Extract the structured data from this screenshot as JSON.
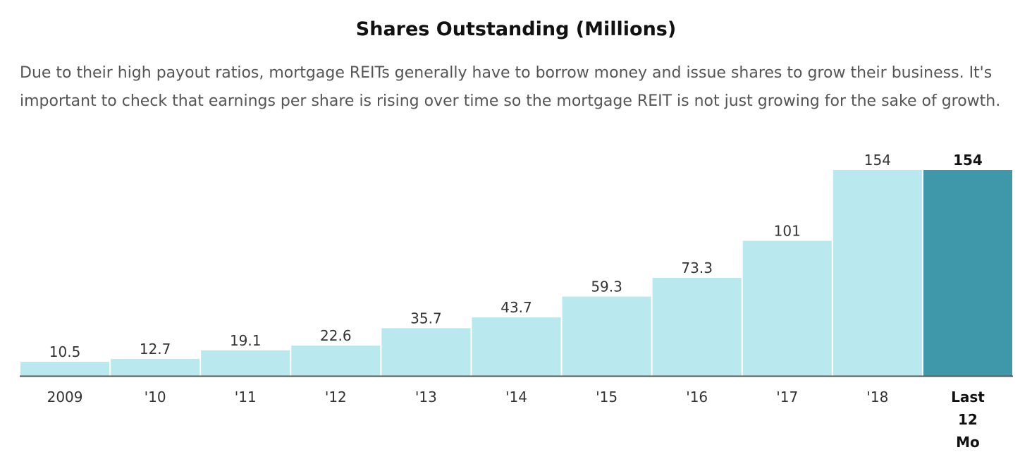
{
  "chart_data": {
    "type": "bar",
    "title": "Shares Outstanding (Millions)",
    "subtitle": "Due to their high payout ratios, mortgage REITs generally have to borrow money and issue shares to grow their business. It's important to check that earnings per share is rising over time so the mortgage REIT is not just growing for the sake of growth.",
    "categories": [
      "2009",
      "'10",
      "'11",
      "'12",
      "'13",
      "'14",
      "'15",
      "'16",
      "'17",
      "'18",
      "Last 12 Mo"
    ],
    "category_lines": [
      [
        "2009"
      ],
      [
        "'10"
      ],
      [
        "'11"
      ],
      [
        "'12"
      ],
      [
        "'13"
      ],
      [
        "'14"
      ],
      [
        "'15"
      ],
      [
        "'16"
      ],
      [
        "'17"
      ],
      [
        "'18"
      ],
      [
        "Last",
        "12",
        "Mo"
      ]
    ],
    "values": [
      10.5,
      12.7,
      19.1,
      22.6,
      35.7,
      43.7,
      59.3,
      73.3,
      101,
      154,
      154
    ],
    "value_labels": [
      "10.5",
      "12.7",
      "19.1",
      "22.6",
      "35.7",
      "43.7",
      "59.3",
      "73.3",
      "101",
      "154",
      "154"
    ],
    "highlight_index": 10,
    "xlabel": "",
    "ylabel": "",
    "ylim": [
      0,
      154
    ],
    "grid": false,
    "colors": {
      "bar": "#b9e8ee",
      "highlight": "#3f98aa",
      "axis": "#555555"
    }
  }
}
